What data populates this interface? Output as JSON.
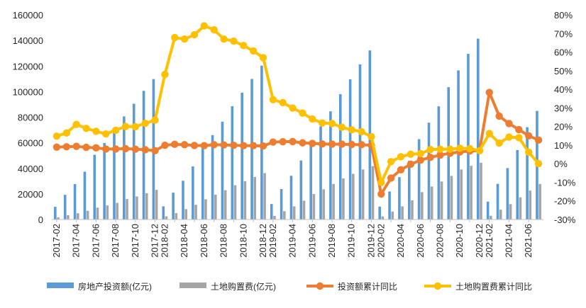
{
  "chart_data": {
    "type": "bar+line",
    "categories": [
      "2017-02",
      "2017-03",
      "2017-04",
      "2017-05",
      "2017-06",
      "2017-07",
      "2017-08",
      "2017-09",
      "2017-10",
      "2017-11",
      "2017-12",
      "2018-02",
      "2018-03",
      "2018-04",
      "2018-05",
      "2018-06",
      "2018-07",
      "2018-08",
      "2018-09",
      "2018-10",
      "2018-11",
      "2018-12",
      "2019-02",
      "2019-03",
      "2019-04",
      "2019-05",
      "2019-06",
      "2019-07",
      "2019-08",
      "2019-09",
      "2019-10",
      "2019-11",
      "2019-12",
      "2020-02",
      "2020-03",
      "2020-04",
      "2020-05",
      "2020-06",
      "2020-07",
      "2020-08",
      "2020-09",
      "2020-10",
      "2020-11",
      "2020-12",
      "2021-02",
      "2021-03",
      "2021-04",
      "2021-05",
      "2021-06",
      "2021-07"
    ],
    "x_tick_labels": [
      "2017-02",
      "2017-04",
      "2017-06",
      "2017-08",
      "2017-10",
      "2017-12",
      "2018-02",
      "2018-04",
      "2018-06",
      "2018-08",
      "2018-10",
      "2018-12",
      "2019-02",
      "2019-04",
      "2019-06",
      "2019-08",
      "2019-10",
      "2019-12",
      "2020-02",
      "2020-04",
      "2020-06",
      "2020-08",
      "2020-10",
      "2020-12",
      "2021-02",
      "2021-04",
      "2021-06"
    ],
    "y_left": {
      "min": 0,
      "max": 160000,
      "ticks": [
        "0",
        "20000",
        "40000",
        "60000",
        "80000",
        "100000",
        "120000",
        "140000",
        "160000"
      ]
    },
    "y_right": {
      "min": -30,
      "max": 80,
      "ticks": [
        "-30%",
        "-20%",
        "-10%",
        "0%",
        "10%",
        "20%",
        "30%",
        "40%",
        "50%",
        "60%",
        "70%",
        "80%"
      ]
    },
    "series": [
      {
        "name": "房地产投资额(亿元)",
        "kind": "bar",
        "axis": "left",
        "color": "#5b9bd5",
        "values": [
          9900,
          19300,
          27700,
          37400,
          50600,
          59800,
          70000,
          80600,
          90500,
          100600,
          109800,
          10300,
          21000,
          30300,
          41500,
          55500,
          66000,
          76500,
          88600,
          99200,
          109900,
          120300,
          12100,
          23800,
          34200,
          46100,
          61600,
          72800,
          84600,
          98000,
          109600,
          121300,
          132200,
          10100,
          21900,
          33100,
          45900,
          62800,
          75700,
          88500,
          103500,
          116600,
          129500,
          141400,
          14000,
          27900,
          40200,
          54300,
          72200,
          84900
        ]
      },
      {
        "name": "土地购置费(亿元)",
        "kind": "bar",
        "axis": "left",
        "color": "#a5a5a5",
        "values": [
          1700,
          3400,
          4900,
          6800,
          9300,
          11000,
          13000,
          16000,
          18000,
          20600,
          23200,
          2500,
          5000,
          8100,
          11500,
          15800,
          19400,
          22900,
          26800,
          30000,
          33300,
          36300,
          2800,
          6500,
          10300,
          14700,
          19900,
          23600,
          27800,
          32100,
          35700,
          39100,
          41700,
          2400,
          6200,
          10300,
          15000,
          21400,
          25800,
          29700,
          34100,
          39100,
          42000,
          44400,
          2900,
          7700,
          12000,
          17300,
          22600,
          27800
        ]
      },
      {
        "name": "投资额累计同比",
        "kind": "line",
        "axis": "right",
        "color": "#ed7d31",
        "values": [
          8.9,
          9.1,
          9.3,
          8.8,
          8.5,
          7.9,
          7.9,
          8.1,
          7.8,
          7.5,
          7.0,
          9.9,
          10.4,
          10.2,
          9.8,
          9.7,
          10.2,
          10.1,
          9.9,
          9.7,
          9.7,
          9.5,
          11.6,
          11.8,
          11.9,
          11.2,
          10.9,
          10.6,
          10.5,
          10.5,
          10.3,
          10.2,
          9.9,
          -16.3,
          -7.7,
          -3.3,
          -0.3,
          1.9,
          3.4,
          4.6,
          5.6,
          6.3,
          6.8,
          7.0,
          38.3,
          25.6,
          21.6,
          18.3,
          15.0,
          12.7
        ]
      },
      {
        "name": "土地购置费累计同比",
        "kind": "line",
        "axis": "right",
        "color": "#ffc000",
        "values": [
          14.8,
          16.5,
          21.1,
          19.0,
          17.4,
          16.0,
          18.0,
          20.0,
          19.9,
          21.7,
          23.4,
          48.0,
          67.8,
          67.0,
          69.3,
          74.1,
          72.0,
          67.0,
          65.9,
          63.5,
          60.6,
          57.0,
          34.4,
          32.8,
          29.9,
          27.2,
          24.0,
          21.9,
          21.6,
          19.6,
          18.2,
          17.2,
          14.5,
          -10.1,
          1.1,
          3.7,
          5.1,
          5.4,
          7.6,
          7.8,
          7.8,
          8.3,
          8.1,
          7.0,
          16.2,
          11.1,
          14.3,
          14.0,
          6.2,
          0
        ]
      }
    ],
    "legend": {
      "position": "bottom",
      "labels": [
        "房地产投资额(亿元)",
        "土地购置费(亿元)",
        "投资额累计同比",
        "土地购置费累计同比"
      ]
    },
    "grid": false
  }
}
